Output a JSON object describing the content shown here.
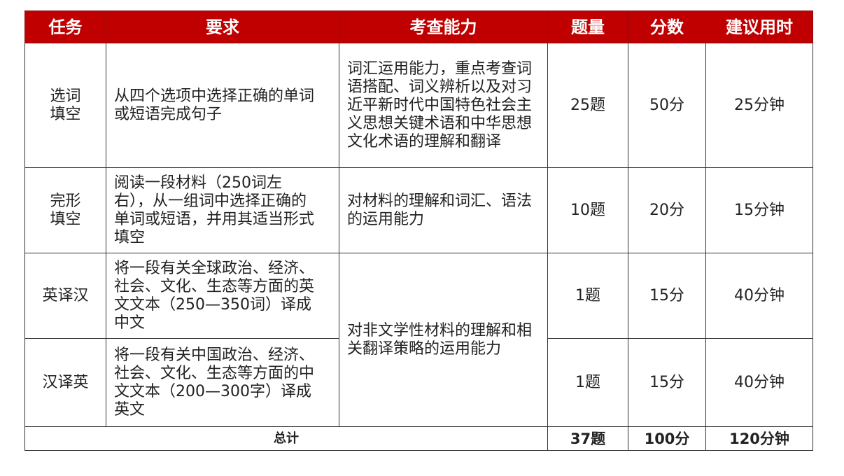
{
  "header": {
    "color": "#c00000",
    "columns": [
      "任务",
      "要求",
      "考查能力",
      "题量",
      "分数",
      "建议用时"
    ]
  },
  "rows": [
    {
      "task": "选词填空",
      "requirement": "从四个选项中选择正确的单词或短语完成句子",
      "ability": "词汇运用能力，重点考查词语搭配、词义辨析以及对习近平新时代中国特色社会主义思想关键术语和中华思想文化术语的理解和翻译",
      "count": "25题",
      "score": "50分",
      "time": "25分钟"
    },
    {
      "task": "完形填空",
      "requirement": "阅读一段材料（250词左右），从一组词中选择正确的单词或短语，并用其适当形式填空",
      "ability": "对材料的理解和词汇、语法的运用能力",
      "count": "10题",
      "score": "20分",
      "time": "15分钟"
    },
    {
      "task": "英译汉",
      "requirement": "将一段有关全球政治、经济、社会、文化、生态等方面的英文文本（250—350词）译成中文",
      "ability": "对非文学性材料的理解和相关翻译策略的运用能力",
      "count": "1题",
      "score": "15分",
      "time": "40分钟"
    },
    {
      "task": "汉译英",
      "requirement": "将一段有关中国政治、经济、社会、文化、生态等方面的中文文本（200—300字）译成英文",
      "count": "1题",
      "score": "15分",
      "time": "40分钟"
    }
  ],
  "total": {
    "label": "总计",
    "count": "37题",
    "score": "100分",
    "time": "120分钟"
  }
}
